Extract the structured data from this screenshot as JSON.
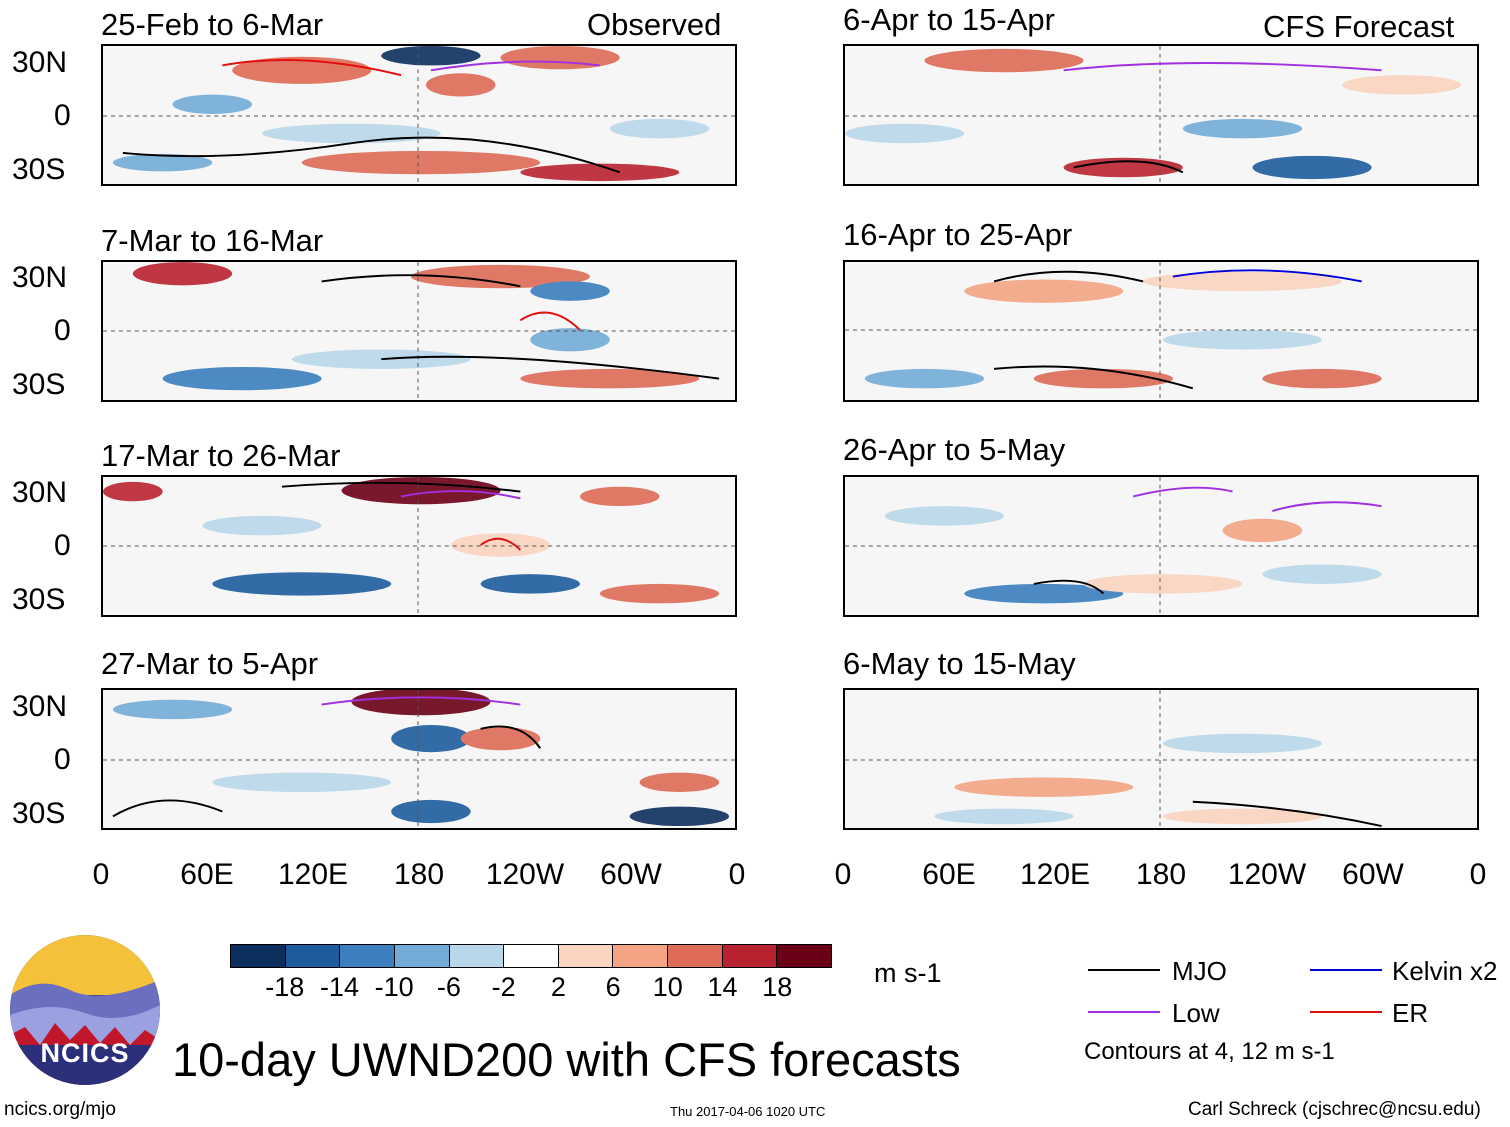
{
  "panels": {
    "left": [
      {
        "date": "25-Feb to 6-Mar",
        "tag": "Observed"
      },
      {
        "date": "7-Mar to 16-Mar",
        "tag": ""
      },
      {
        "date": "17-Mar to 26-Mar",
        "tag": ""
      },
      {
        "date": "27-Mar to 5-Apr",
        "tag": ""
      }
    ],
    "right": [
      {
        "date": "6-Apr to 15-Apr",
        "tag": "CFS Forecast"
      },
      {
        "date": "16-Apr to 25-Apr",
        "tag": ""
      },
      {
        "date": "26-Apr to 5-May",
        "tag": ""
      },
      {
        "date": "6-May to 15-May",
        "tag": ""
      }
    ]
  },
  "axes": {
    "lat_ticks": [
      "30N",
      "0",
      "30S"
    ],
    "lon_ticks": [
      "0",
      "60E",
      "120E",
      "180",
      "120W",
      "60W",
      "0"
    ]
  },
  "colorbar": {
    "ticks": [
      "-18",
      "-14",
      "-10",
      "-6",
      "-2",
      "2",
      "6",
      "10",
      "14",
      "18"
    ],
    "units": "m s-1",
    "colors": [
      "#0d2f5e",
      "#1f5c9e",
      "#3b7fbf",
      "#73acd6",
      "#b9d7ea",
      "#ffffff",
      "#fbd3c0",
      "#f4a483",
      "#dd6b56",
      "#b9232f",
      "#6b0016"
    ]
  },
  "legend": {
    "mjo": "MJO",
    "kelvin": "Kelvin x2",
    "low": "Low",
    "er": "ER",
    "contours": "Contours at 4, 12 m s-1",
    "colors": {
      "mjo": "#000000",
      "kelvin": "#0000dd",
      "low": "#a030e0",
      "er": "#e01010"
    }
  },
  "logo": {
    "text": "NCICS"
  },
  "title": "10-day UWND200 with CFS forecasts",
  "footer": {
    "url": "ncics.org/mjo",
    "timestamp": "Thu 2017-04-06 1020 UTC",
    "author": "Carl Schreck (cjschrec@ncsu.edu)"
  }
}
